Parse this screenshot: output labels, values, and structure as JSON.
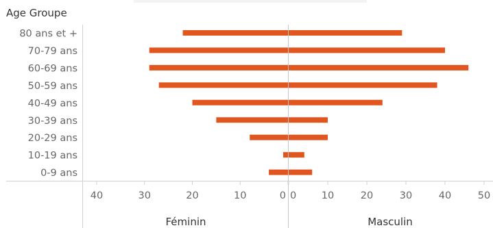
{
  "chart_data": {
    "type": "bar",
    "orientation": "horizontal-butterfly",
    "row_header": "Age Groupe",
    "categories": [
      "80 ans et +",
      "70-79 ans",
      "60-69 ans",
      "50-59 ans",
      "40-49 ans",
      "30-39 ans",
      "20-29 ans",
      "10-19 ans",
      "0-9 ans"
    ],
    "series": [
      {
        "name": "Féminin",
        "values": [
          22,
          29,
          29,
          27,
          20,
          15,
          8,
          1,
          4
        ]
      },
      {
        "name": "Masculin",
        "values": [
          29,
          40,
          46,
          38,
          24,
          10,
          10,
          4,
          6
        ]
      }
    ],
    "left_axis": {
      "ticks": [
        40,
        30,
        20,
        10,
        0
      ],
      "range": [
        40,
        0
      ],
      "label": "Féminin"
    },
    "right_axis": {
      "ticks": [
        0,
        10,
        20,
        30,
        40,
        50
      ],
      "range": [
        0,
        50
      ],
      "label": "Masculin"
    },
    "bar_color": "#e0561e",
    "grid": false
  }
}
